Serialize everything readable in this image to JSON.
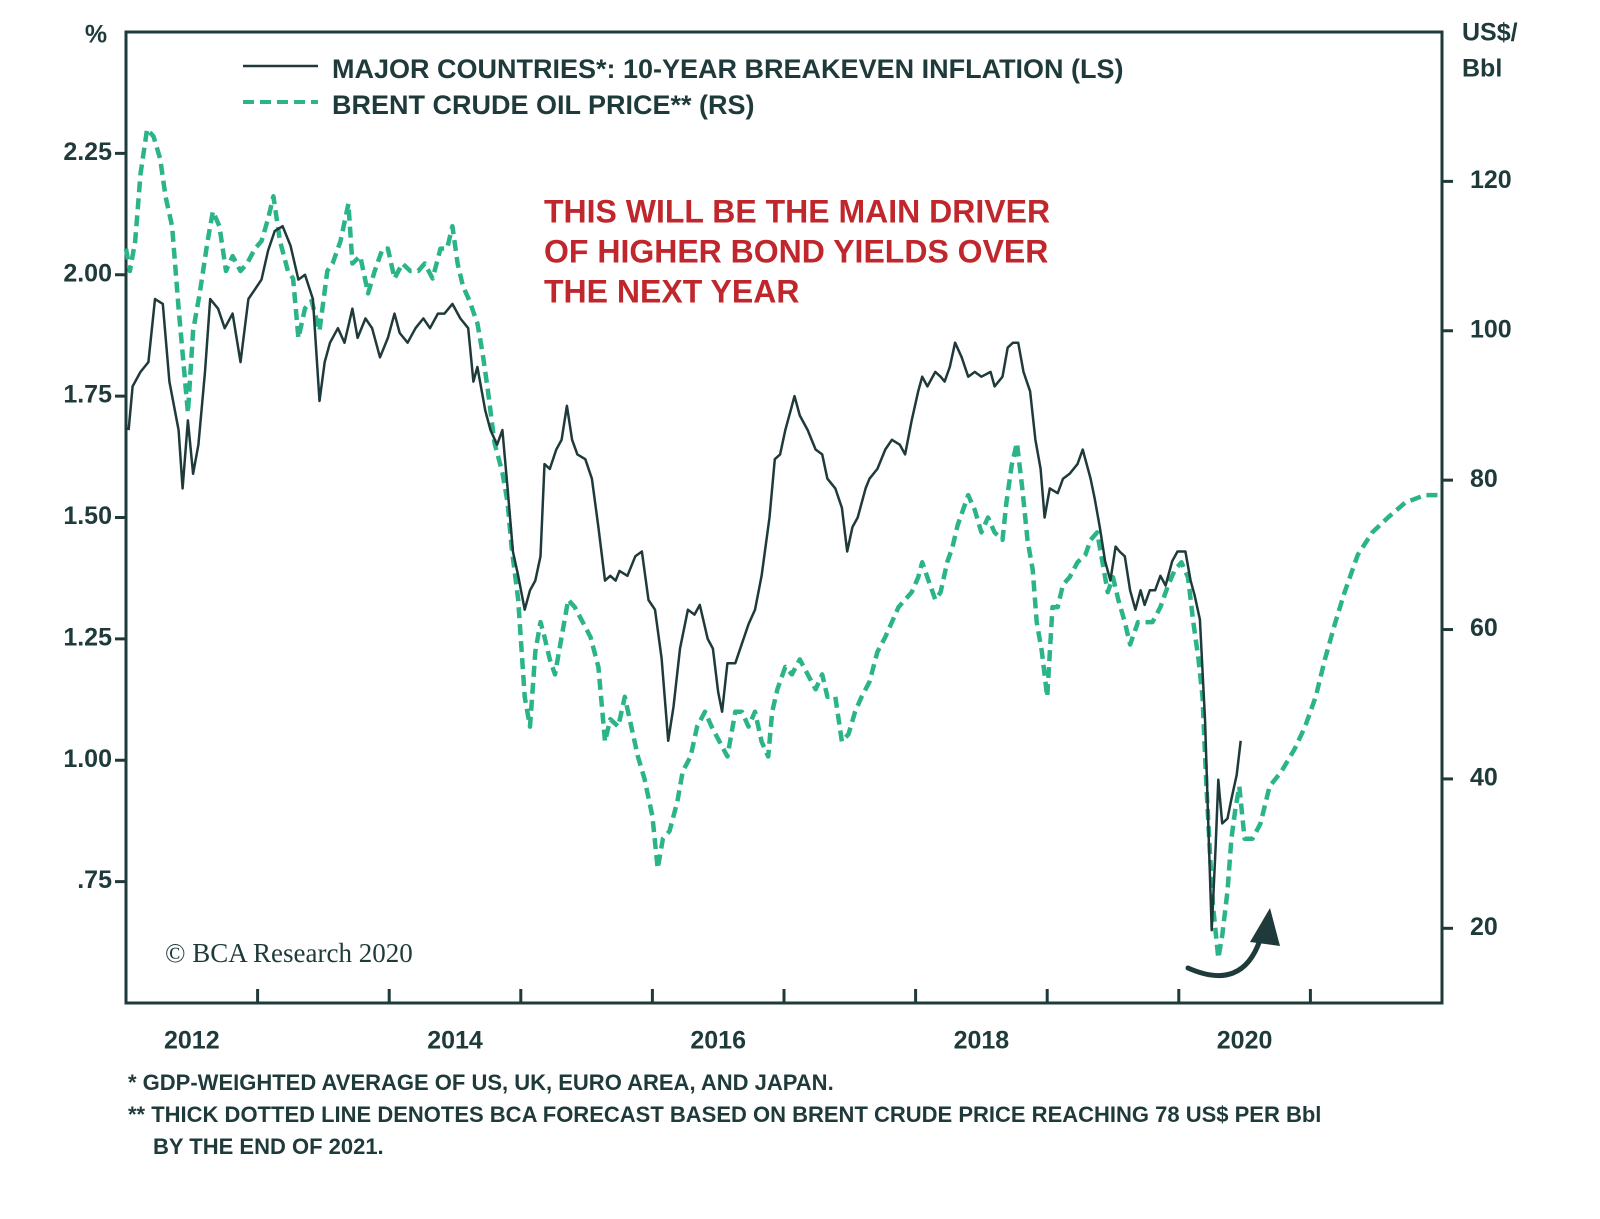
{
  "chart_data": {
    "type": "line",
    "y_label": "%",
    "y2_label": [
      "US$/",
      "Bbl"
    ],
    "annotation": [
      "THIS WILL BE THE MAIN DRIVER",
      "OF HIGHER BOND YIELDS OVER",
      "THE NEXT YEAR"
    ],
    "watermark": "© BCA Research 2020",
    "footnotes": [
      "*  GDP-WEIGHTED AVERAGE OF US, UK, EURO AREA, AND JAPAN.",
      "** THICK DOTTED LINE DENOTES BCA FORECAST BASED ON BRENT CRUDE PRICE REACHING 78 US$ PER Bbl",
      "BY THE END OF 2021."
    ],
    "xlim": [
      2012,
      2022
    ],
    "xticks": [
      {
        "value": 2012.5,
        "label": "2012"
      },
      {
        "value": 2014.5,
        "label": "2014"
      },
      {
        "value": 2016.5,
        "label": "2016"
      },
      {
        "value": 2018.5,
        "label": "2018"
      },
      {
        "value": 2020.5,
        "label": "2020"
      }
    ],
    "x_tick_marks": [
      2013,
      2014,
      2015,
      2016,
      2017,
      2018,
      2019,
      2020,
      2021
    ],
    "ylim": [
      0.5,
      2.5
    ],
    "yticks": [
      {
        "value": 0.75,
        "label": ".75"
      },
      {
        "value": 1,
        "label": "1.00"
      },
      {
        "value": 1.25,
        "label": "1.25"
      },
      {
        "value": 1.5,
        "label": "1.50"
      },
      {
        "value": 1.75,
        "label": "1.75"
      },
      {
        "value": 2,
        "label": "2.00"
      },
      {
        "value": 2.25,
        "label": "2.25"
      }
    ],
    "y2lim": [
      10,
      140
    ],
    "y2ticks": [
      20,
      40,
      60,
      80,
      100,
      120
    ],
    "series": [
      {
        "name": "MAJOR COUNTRIES*: 10-YEAR BREAKEVEN INFLATION (LS)",
        "color": "#1f3a3a",
        "style": "solid",
        "axis": "y",
        "x": [
          2012.02,
          2012.05,
          2012.11,
          2012.17,
          2012.22,
          2012.28,
          2012.33,
          2012.4,
          2012.43,
          2012.47,
          2012.51,
          2012.55,
          2012.6,
          2012.64,
          2012.7,
          2012.75,
          2012.81,
          2012.87,
          2012.93,
          2012.98,
          2013.03,
          2013.08,
          2013.13,
          2013.19,
          2013.25,
          2013.31,
          2013.36,
          2013.42,
          2013.47,
          2013.51,
          2013.55,
          2013.61,
          2013.66,
          2013.72,
          2013.76,
          2013.82,
          2013.87,
          2013.93,
          2013.99,
          2014.04,
          2014.08,
          2014.14,
          2014.2,
          2014.26,
          2014.31,
          2014.37,
          2014.42,
          2014.48,
          2014.54,
          2014.6,
          2014.64,
          2014.67,
          2014.73,
          2014.77,
          2014.82,
          2014.86,
          2014.9,
          2014.94,
          2014.98,
          2015.03,
          2015.07,
          2015.11,
          2015.15,
          2015.18,
          2015.22,
          2015.27,
          2015.31,
          2015.35,
          2015.39,
          2015.43,
          2015.49,
          2015.54,
          2015.59,
          2015.64,
          2015.68,
          2015.72,
          2015.75,
          2015.81,
          2015.87,
          2015.92,
          2015.97,
          2016.02,
          2016.07,
          2016.12,
          2016.16,
          2016.21,
          2016.27,
          2016.32,
          2016.36,
          2016.42,
          2016.46,
          2016.5,
          2016.53,
          2016.57,
          2016.63,
          2016.68,
          2016.73,
          2016.78,
          2016.83,
          2016.89,
          2016.93,
          2016.97,
          2017.01,
          2017.05,
          2017.08,
          2017.12,
          2017.18,
          2017.24,
          2017.29,
          2017.33,
          2017.39,
          2017.44,
          2017.48,
          2017.52,
          2017.56,
          2017.62,
          2017.65,
          2017.71,
          2017.77,
          2017.82,
          2017.88,
          2017.92,
          2017.97,
          2018.02,
          2018.05,
          2018.09,
          2018.15,
          2018.19,
          2018.22,
          2018.26,
          2018.3,
          2018.35,
          2018.4,
          2018.45,
          2018.5,
          2018.57,
          2018.6,
          2018.66,
          2018.7,
          2018.74,
          2018.78,
          2018.82,
          2018.87,
          2018.91,
          2018.95,
          2018.98,
          2019.02,
          2019.08,
          2019.12,
          2019.17,
          2019.23,
          2019.27,
          2019.33,
          2019.36,
          2019.4,
          2019.44,
          2019.48,
          2019.52,
          2019.55,
          2019.59,
          2019.63,
          2019.67,
          2019.71,
          2019.74,
          2019.78,
          2019.82,
          2019.86,
          2019.9,
          2019.95,
          2019.99,
          2020.05,
          2020.09,
          2020.12,
          2020.16,
          2020.2,
          2020.22,
          2020.25,
          2020.28,
          2020.3,
          2020.33,
          2020.37,
          2020.4,
          2020.44,
          2020.47
        ],
        "values": [
          1.68,
          1.77,
          1.8,
          1.82,
          1.95,
          1.94,
          1.78,
          1.68,
          1.56,
          1.7,
          1.59,
          1.65,
          1.8,
          1.95,
          1.93,
          1.89,
          1.92,
          1.82,
          1.95,
          1.97,
          1.99,
          2.05,
          2.09,
          2.1,
          2.06,
          1.99,
          2.0,
          1.95,
          1.74,
          1.82,
          1.86,
          1.89,
          1.86,
          1.93,
          1.87,
          1.91,
          1.89,
          1.83,
          1.87,
          1.92,
          1.88,
          1.86,
          1.89,
          1.91,
          1.89,
          1.92,
          1.92,
          1.94,
          1.91,
          1.89,
          1.78,
          1.81,
          1.72,
          1.68,
          1.65,
          1.68,
          1.56,
          1.43,
          1.38,
          1.31,
          1.35,
          1.37,
          1.42,
          1.61,
          1.6,
          1.64,
          1.66,
          1.73,
          1.66,
          1.63,
          1.62,
          1.58,
          1.48,
          1.37,
          1.38,
          1.37,
          1.39,
          1.38,
          1.42,
          1.43,
          1.33,
          1.31,
          1.21,
          1.04,
          1.11,
          1.23,
          1.31,
          1.3,
          1.32,
          1.25,
          1.23,
          1.14,
          1.1,
          1.2,
          1.2,
          1.24,
          1.28,
          1.31,
          1.38,
          1.5,
          1.62,
          1.63,
          1.68,
          1.72,
          1.75,
          1.71,
          1.68,
          1.64,
          1.63,
          1.58,
          1.56,
          1.52,
          1.43,
          1.48,
          1.5,
          1.56,
          1.58,
          1.6,
          1.64,
          1.66,
          1.65,
          1.63,
          1.7,
          1.76,
          1.79,
          1.77,
          1.8,
          1.79,
          1.78,
          1.81,
          1.86,
          1.83,
          1.79,
          1.8,
          1.79,
          1.8,
          1.77,
          1.79,
          1.85,
          1.86,
          1.86,
          1.8,
          1.76,
          1.66,
          1.6,
          1.5,
          1.56,
          1.55,
          1.58,
          1.59,
          1.61,
          1.64,
          1.58,
          1.54,
          1.48,
          1.41,
          1.37,
          1.44,
          1.43,
          1.42,
          1.35,
          1.31,
          1.35,
          1.32,
          1.35,
          1.35,
          1.38,
          1.36,
          1.41,
          1.43,
          1.43,
          1.37,
          1.34,
          1.29,
          1.08,
          0.9,
          0.65,
          0.82,
          0.96,
          0.87,
          0.88,
          0.92,
          0.97,
          1.04
        ]
      },
      {
        "name": "BRENT CRUDE OIL PRICE** (RS)",
        "color": "#2bb389",
        "style": "dashed",
        "axis": "y2",
        "x": [
          2012.0,
          2012.03,
          2012.07,
          2012.11,
          2012.16,
          2012.21,
          2012.26,
          2012.3,
          2012.35,
          2012.4,
          2012.43,
          2012.47,
          2012.51,
          2012.56,
          2012.62,
          2012.66,
          2012.71,
          2012.76,
          2012.81,
          2012.87,
          2012.92,
          2012.98,
          2013.03,
          2013.08,
          2013.12,
          2013.17,
          2013.23,
          2013.27,
          2013.31,
          2013.36,
          2013.41,
          2013.47,
          2013.53,
          2013.57,
          2013.63,
          2013.69,
          2013.72,
          2013.78,
          2013.84,
          2013.89,
          2013.95,
          2013.99,
          2014.04,
          2014.1,
          2014.16,
          2014.22,
          2014.27,
          2014.33,
          2014.39,
          2014.44,
          2014.48,
          2014.52,
          2014.56,
          2014.61,
          2014.67,
          2014.71,
          2014.75,
          2014.8,
          2014.86,
          2014.9,
          2014.93,
          2014.98,
          2015.03,
          2015.07,
          2015.11,
          2015.15,
          2015.18,
          2015.22,
          2015.26,
          2015.31,
          2015.36,
          2015.41,
          2015.47,
          2015.53,
          2015.59,
          2015.64,
          2015.68,
          2015.74,
          2015.79,
          2015.84,
          2015.89,
          2015.94,
          2016.0,
          2016.04,
          2016.08,
          2016.13,
          2016.19,
          2016.23,
          2016.29,
          2016.34,
          2016.4,
          2016.45,
          2016.51,
          2016.57,
          2016.63,
          2016.68,
          2016.73,
          2016.78,
          2016.83,
          2016.88,
          2016.91,
          2016.95,
          2017.01,
          2017.06,
          2017.12,
          2017.18,
          2017.24,
          2017.29,
          2017.33,
          2017.39,
          2017.44,
          2017.49,
          2017.54,
          2017.59,
          2017.65,
          2017.71,
          2017.77,
          2017.82,
          2017.87,
          2017.92,
          2017.97,
          2018.02,
          2018.05,
          2018.09,
          2018.15,
          2018.19,
          2018.24,
          2018.28,
          2018.32,
          2018.36,
          2018.4,
          2018.45,
          2018.5,
          2018.55,
          2018.6,
          2018.66,
          2018.69,
          2018.73,
          2018.77,
          2018.81,
          2018.85,
          2018.89,
          2018.92,
          2018.96,
          2019.0,
          2019.04,
          2019.08,
          2019.12,
          2019.17,
          2019.23,
          2019.29,
          2019.33,
          2019.38,
          2019.42,
          2019.46,
          2019.5,
          2019.54,
          2019.59,
          2019.63,
          2019.69,
          2019.74,
          2019.8,
          2019.86,
          2019.92,
          2019.97,
          2020.02,
          2020.07,
          2020.11,
          2020.15,
          2020.18,
          2020.21,
          2020.24,
          2020.26,
          2020.3,
          2020.33,
          2020.37,
          2020.4,
          2020.43,
          2020.46,
          2020.5,
          2020.56,
          2020.62,
          2020.69,
          2020.78,
          2020.88,
          2020.96,
          2021.04,
          2021.11,
          2021.19,
          2021.26,
          2021.36,
          2021.47,
          2021.59,
          2021.72,
          2021.87,
          2022.0
        ],
        "values": [
          111,
          108,
          112,
          121,
          127,
          126,
          123,
          118,
          114,
          103,
          97,
          89,
          100,
          105,
          112,
          116,
          114,
          108,
          110,
          108,
          109,
          111,
          112,
          115,
          118,
          112,
          108,
          107,
          99,
          103,
          104,
          100,
          108,
          109,
          112,
          117,
          109,
          110,
          105,
          108,
          111,
          111,
          107,
          109,
          108,
          108,
          109,
          107,
          111,
          111,
          114,
          109,
          106,
          104,
          101,
          97,
          92,
          85,
          81,
          77,
          71,
          64,
          51,
          47,
          57,
          61,
          59,
          56,
          54,
          59,
          64,
          63,
          61,
          59,
          55,
          45,
          48,
          47,
          51,
          47,
          43,
          40,
          35,
          28,
          32,
          33,
          37,
          41,
          43,
          47,
          49,
          47,
          45,
          43,
          49,
          49,
          47,
          49,
          45,
          43,
          49,
          52,
          55,
          54,
          56,
          54,
          52,
          54,
          51,
          51,
          45,
          46,
          49,
          51,
          53,
          57,
          59,
          61,
          63,
          64,
          65,
          67,
          69,
          67,
          64,
          65,
          69,
          71,
          74,
          76,
          78,
          76,
          73,
          75,
          73,
          72,
          77,
          82,
          85,
          79,
          72,
          68,
          61,
          57,
          51,
          63,
          63,
          66,
          67,
          69,
          70,
          72,
          73,
          69,
          65,
          67,
          64,
          61,
          58,
          61,
          61,
          61,
          63,
          66,
          68,
          69,
          67,
          61,
          56,
          51,
          39,
          29,
          23,
          16,
          19,
          25,
          32,
          36,
          39,
          32,
          32,
          34,
          39,
          41,
          44,
          47,
          51,
          56,
          61,
          65,
          70,
          73,
          75,
          77,
          78,
          78
        ]
      }
    ]
  }
}
